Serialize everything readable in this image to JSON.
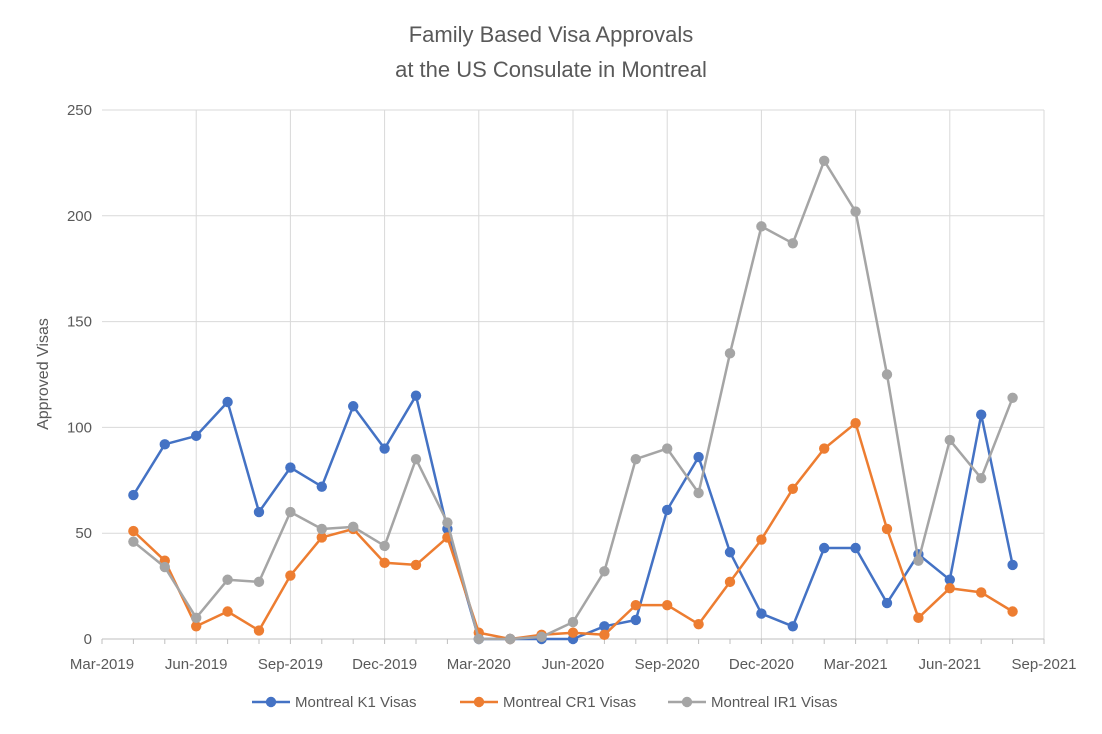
{
  "chart_data": {
    "type": "line",
    "title_lines": [
      "Family Based Visa Approvals",
      "at the US Consulate in Montreal"
    ],
    "xlabel": "",
    "ylabel": "Approved Visas",
    "ylim": [
      0,
      250
    ],
    "yticks": [
      0,
      50,
      100,
      150,
      200,
      250
    ],
    "xlim": [
      "2019-03",
      "2021-09"
    ],
    "xticks": [
      "Mar-2019",
      "Jun-2019",
      "Sep-2019",
      "Dec-2019",
      "Mar-2020",
      "Jun-2020",
      "Sep-2020",
      "Dec-2020",
      "Mar-2021",
      "Jun-2021",
      "Sep-2021"
    ],
    "grid": true,
    "legend_position": "bottom",
    "x": [
      "2019-04",
      "2019-05",
      "2019-06",
      "2019-07",
      "2019-08",
      "2019-09",
      "2019-10",
      "2019-11",
      "2019-12",
      "2020-01",
      "2020-02",
      "2020-03",
      "2020-04",
      "2020-05",
      "2020-06",
      "2020-07",
      "2020-08",
      "2020-09",
      "2020-10",
      "2020-11",
      "2020-12",
      "2021-01",
      "2021-02",
      "2021-03",
      "2021-04",
      "2021-05",
      "2021-06",
      "2021-07",
      "2021-08",
      "2021-09"
    ],
    "series": [
      {
        "name": "Montreal K1 Visas",
        "color": "#4472C4",
        "values": [
          68,
          92,
          96,
          112,
          60,
          81,
          72,
          110,
          90,
          115,
          52,
          0,
          0,
          0,
          0,
          6,
          9,
          61,
          86,
          41,
          12,
          6,
          43,
          43,
          17,
          40,
          28,
          106,
          35,
          null
        ]
      },
      {
        "name": "Montreal CR1 Visas",
        "color": "#ED7D31",
        "values": [
          51,
          37,
          6,
          13,
          4,
          30,
          48,
          52,
          36,
          35,
          48,
          3,
          0,
          2,
          3,
          2,
          16,
          16,
          7,
          27,
          47,
          71,
          90,
          102,
          52,
          10,
          24,
          22,
          13,
          null
        ]
      },
      {
        "name": "Montreal IR1 Visas",
        "color": "#A5A5A5",
        "values": [
          46,
          34,
          10,
          28,
          27,
          60,
          52,
          53,
          44,
          85,
          55,
          0,
          0,
          1,
          8,
          32,
          85,
          90,
          69,
          135,
          195,
          187,
          226,
          202,
          125,
          37,
          94,
          76,
          114,
          null
        ]
      }
    ]
  }
}
